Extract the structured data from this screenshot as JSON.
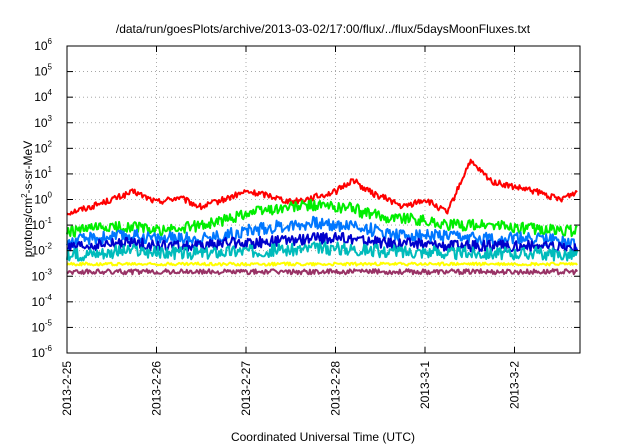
{
  "chart_data": {
    "type": "line",
    "title": "/data/run/goesPlots/archive/2013-03-02/17:00/flux/../flux/5daysMoonFluxes.txt",
    "xlabel": "Coordinated Universal Time (UTC)",
    "ylabel": {
      "base": "protons/cm",
      "exp": "2",
      "rest": "-s-sr-MeV"
    },
    "yscale": "log",
    "ylim": [
      1e-06,
      1000000.0
    ],
    "xlim": [
      "2013-02-25",
      "2013-03-02 17:00"
    ],
    "x_ticks": [
      "2013-2-25",
      "2013-2-26",
      "2013-2-27",
      "2013-2-28",
      "2013-3-1",
      "2013-3-2"
    ],
    "y_ticks": [
      {
        "value": -6,
        "base": "10",
        "exp": "-6"
      },
      {
        "value": -5,
        "base": "10",
        "exp": "-5"
      },
      {
        "value": -4,
        "base": "10",
        "exp": "-4"
      },
      {
        "value": -3,
        "base": "10",
        "exp": "-3"
      },
      {
        "value": -2,
        "base": "10",
        "exp": "-2"
      },
      {
        "value": -1,
        "base": "10",
        "exp": "-1"
      },
      {
        "value": 0,
        "base": "10",
        "exp": "0"
      },
      {
        "value": 1,
        "base": "10",
        "exp": "1"
      },
      {
        "value": 2,
        "base": "10",
        "exp": "2"
      },
      {
        "value": 3,
        "base": "10",
        "exp": "3"
      },
      {
        "value": 4,
        "base": "10",
        "exp": "4"
      },
      {
        "value": 5,
        "base": "10",
        "exp": "5"
      },
      {
        "value": 6,
        "base": "10",
        "exp": "6"
      }
    ],
    "grid": true,
    "x_days": [
      0,
      0.25,
      0.5,
      0.75,
      1,
      1.25,
      1.5,
      1.75,
      2,
      2.25,
      2.5,
      2.75,
      3,
      3.2,
      3.3,
      3.45,
      3.6,
      3.75,
      4,
      4.25,
      4.5,
      4.75,
      5,
      5.25,
      5.5,
      5.7
    ],
    "series": [
      {
        "color": "#ff0000",
        "noise": 0.12,
        "values": [
          0.3,
          0.5,
          1.0,
          2.0,
          0.8,
          1.2,
          0.5,
          1.0,
          2.0,
          1.5,
          0.8,
          1.2,
          2.0,
          6.0,
          3.0,
          1.5,
          1.0,
          0.5,
          1.0,
          0.3,
          30,
          5,
          3,
          2,
          1,
          2
        ]
      },
      {
        "color": "#00ee00",
        "noise": 0.22,
        "values": [
          0.05,
          0.07,
          0.08,
          0.09,
          0.06,
          0.07,
          0.1,
          0.15,
          0.3,
          0.4,
          0.5,
          0.6,
          0.5,
          0.5,
          0.3,
          0.25,
          0.2,
          0.2,
          0.15,
          0.1,
          0.1,
          0.1,
          0.08,
          0.07,
          0.06,
          0.06
        ]
      },
      {
        "color": "#0077ff",
        "noise": 0.25,
        "values": [
          0.02,
          0.03,
          0.035,
          0.04,
          0.03,
          0.03,
          0.03,
          0.04,
          0.06,
          0.08,
          0.1,
          0.12,
          0.1,
          0.1,
          0.08,
          0.06,
          0.05,
          0.04,
          0.04,
          0.035,
          0.03,
          0.03,
          0.03,
          0.03,
          0.025,
          0.02
        ]
      },
      {
        "color": "#0000cc",
        "noise": 0.22,
        "values": [
          0.012,
          0.015,
          0.018,
          0.02,
          0.015,
          0.015,
          0.015,
          0.02,
          0.02,
          0.022,
          0.025,
          0.03,
          0.03,
          0.03,
          0.025,
          0.022,
          0.02,
          0.02,
          0.018,
          0.016,
          0.015,
          0.015,
          0.015,
          0.015,
          0.013,
          0.012
        ]
      },
      {
        "color": "#00bbbb",
        "noise": 0.25,
        "values": [
          0.006,
          0.008,
          0.009,
          0.01,
          0.008,
          0.008,
          0.008,
          0.009,
          0.01,
          0.01,
          0.011,
          0.012,
          0.012,
          0.012,
          0.011,
          0.01,
          0.009,
          0.009,
          0.009,
          0.008,
          0.008,
          0.008,
          0.008,
          0.008,
          0.007,
          0.007
        ]
      },
      {
        "color": "#ffff00",
        "noise": 0.06,
        "values": [
          0.003,
          0.003,
          0.003,
          0.003,
          0.003,
          0.003,
          0.003,
          0.003,
          0.003,
          0.003,
          0.003,
          0.003,
          0.003,
          0.003,
          0.003,
          0.003,
          0.003,
          0.003,
          0.003,
          0.003,
          0.003,
          0.003,
          0.003,
          0.003,
          0.003,
          0.003
        ]
      },
      {
        "color": "#993366",
        "noise": 0.1,
        "values": [
          0.0015,
          0.0015,
          0.0015,
          0.0015,
          0.0015,
          0.0015,
          0.0015,
          0.0015,
          0.0015,
          0.0015,
          0.0015,
          0.0015,
          0.0015,
          0.0015,
          0.0015,
          0.0015,
          0.0015,
          0.0015,
          0.0015,
          0.0015,
          0.0015,
          0.0015,
          0.0015,
          0.0015,
          0.0015,
          0.0015
        ]
      }
    ]
  }
}
